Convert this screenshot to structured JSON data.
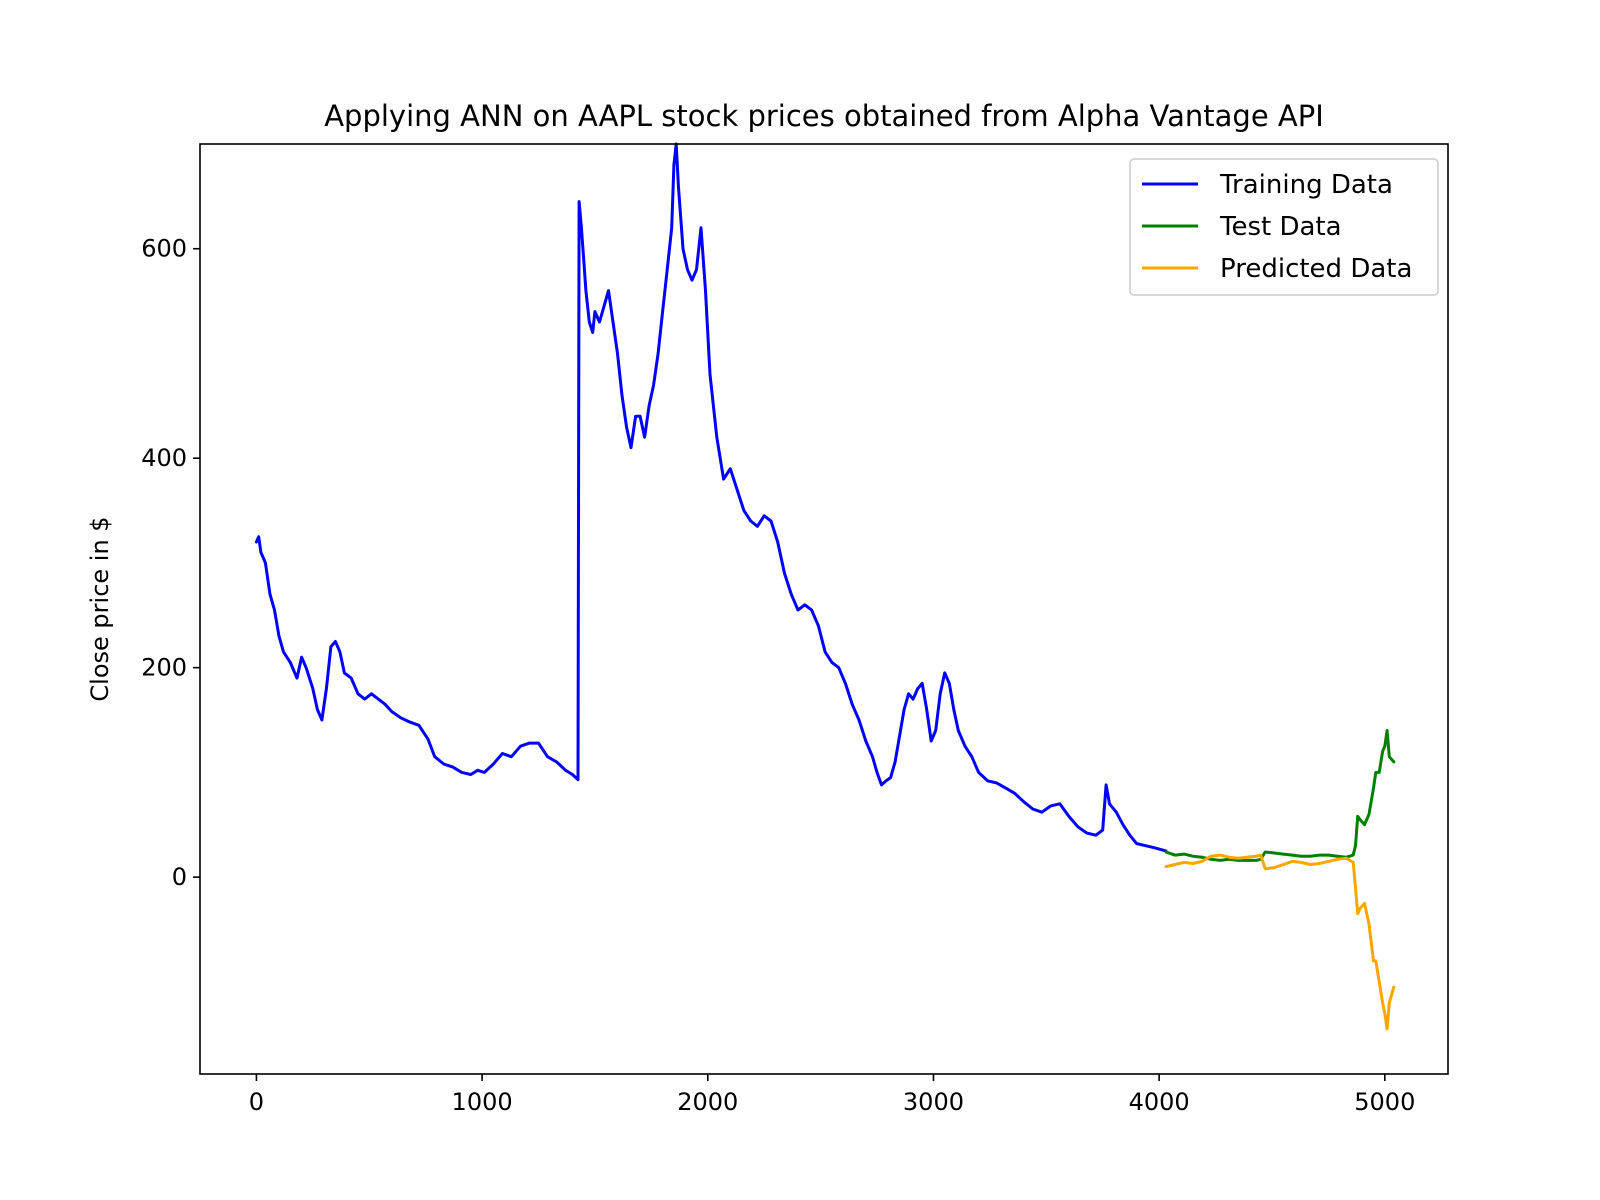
{
  "chart_data": {
    "type": "line",
    "title": "Applying ANN on AAPL stock prices obtained from Alpha Vantage API",
    "xlabel": "",
    "ylabel": "Close price in $",
    "xlim": [
      -250,
      5280
    ],
    "ylim": [
      -188,
      700
    ],
    "x_ticks": [
      0,
      1000,
      2000,
      3000,
      4000,
      5000
    ],
    "y_ticks": [
      0,
      200,
      400,
      600
    ],
    "grid": false,
    "legend_position": "top-right",
    "series": [
      {
        "name": "Training Data",
        "color": "#0000ff",
        "points": [
          [
            0,
            320
          ],
          [
            10,
            325
          ],
          [
            20,
            310
          ],
          [
            40,
            300
          ],
          [
            60,
            270
          ],
          [
            80,
            255
          ],
          [
            100,
            230
          ],
          [
            120,
            215
          ],
          [
            150,
            205
          ],
          [
            180,
            190
          ],
          [
            200,
            210
          ],
          [
            220,
            200
          ],
          [
            250,
            180
          ],
          [
            270,
            160
          ],
          [
            290,
            150
          ],
          [
            310,
            180
          ],
          [
            330,
            220
          ],
          [
            350,
            225
          ],
          [
            370,
            215
          ],
          [
            390,
            195
          ],
          [
            420,
            190
          ],
          [
            450,
            175
          ],
          [
            480,
            170
          ],
          [
            510,
            175
          ],
          [
            540,
            170
          ],
          [
            570,
            165
          ],
          [
            600,
            158
          ],
          [
            640,
            152
          ],
          [
            680,
            148
          ],
          [
            720,
            145
          ],
          [
            760,
            132
          ],
          [
            790,
            115
          ],
          [
            830,
            108
          ],
          [
            870,
            105
          ],
          [
            910,
            100
          ],
          [
            950,
            98
          ],
          [
            980,
            102
          ],
          [
            1010,
            100
          ],
          [
            1050,
            108
          ],
          [
            1090,
            118
          ],
          [
            1130,
            115
          ],
          [
            1170,
            125
          ],
          [
            1210,
            128
          ],
          [
            1250,
            128
          ],
          [
            1290,
            115
          ],
          [
            1330,
            110
          ],
          [
            1370,
            102
          ],
          [
            1400,
            98
          ],
          [
            1425,
            93
          ],
          [
            1430,
            645
          ],
          [
            1440,
            620
          ],
          [
            1450,
            590
          ],
          [
            1460,
            560
          ],
          [
            1475,
            530
          ],
          [
            1490,
            520
          ],
          [
            1500,
            540
          ],
          [
            1520,
            530
          ],
          [
            1540,
            545
          ],
          [
            1560,
            560
          ],
          [
            1580,
            530
          ],
          [
            1600,
            500
          ],
          [
            1620,
            460
          ],
          [
            1640,
            430
          ],
          [
            1660,
            410
          ],
          [
            1680,
            440
          ],
          [
            1700,
            440
          ],
          [
            1720,
            420
          ],
          [
            1740,
            450
          ],
          [
            1760,
            470
          ],
          [
            1780,
            500
          ],
          [
            1800,
            540
          ],
          [
            1820,
            580
          ],
          [
            1840,
            620
          ],
          [
            1850,
            680
          ],
          [
            1860,
            700
          ],
          [
            1870,
            660
          ],
          [
            1890,
            600
          ],
          [
            1910,
            580
          ],
          [
            1930,
            570
          ],
          [
            1950,
            580
          ],
          [
            1970,
            620
          ],
          [
            1990,
            560
          ],
          [
            2010,
            480
          ],
          [
            2040,
            420
          ],
          [
            2070,
            380
          ],
          [
            2100,
            390
          ],
          [
            2130,
            370
          ],
          [
            2160,
            350
          ],
          [
            2190,
            340
          ],
          [
            2220,
            335
          ],
          [
            2250,
            345
          ],
          [
            2280,
            340
          ],
          [
            2310,
            320
          ],
          [
            2340,
            290
          ],
          [
            2370,
            270
          ],
          [
            2400,
            255
          ],
          [
            2430,
            260
          ],
          [
            2460,
            255
          ],
          [
            2490,
            240
          ],
          [
            2520,
            215
          ],
          [
            2550,
            205
          ],
          [
            2580,
            200
          ],
          [
            2610,
            185
          ],
          [
            2640,
            165
          ],
          [
            2670,
            150
          ],
          [
            2700,
            130
          ],
          [
            2730,
            115
          ],
          [
            2750,
            100
          ],
          [
            2770,
            88
          ],
          [
            2790,
            92
          ],
          [
            2810,
            95
          ],
          [
            2830,
            110
          ],
          [
            2850,
            135
          ],
          [
            2870,
            160
          ],
          [
            2890,
            175
          ],
          [
            2910,
            170
          ],
          [
            2930,
            180
          ],
          [
            2950,
            185
          ],
          [
            2970,
            160
          ],
          [
            2990,
            130
          ],
          [
            3010,
            140
          ],
          [
            3030,
            175
          ],
          [
            3050,
            195
          ],
          [
            3070,
            185
          ],
          [
            3090,
            160
          ],
          [
            3110,
            140
          ],
          [
            3140,
            125
          ],
          [
            3170,
            115
          ],
          [
            3200,
            100
          ],
          [
            3240,
            92
          ],
          [
            3280,
            90
          ],
          [
            3320,
            85
          ],
          [
            3360,
            80
          ],
          [
            3400,
            72
          ],
          [
            3440,
            65
          ],
          [
            3480,
            62
          ],
          [
            3520,
            68
          ],
          [
            3560,
            70
          ],
          [
            3600,
            58
          ],
          [
            3640,
            48
          ],
          [
            3680,
            42
          ],
          [
            3720,
            40
          ],
          [
            3750,
            45
          ],
          [
            3765,
            88
          ],
          [
            3780,
            70
          ],
          [
            3810,
            62
          ],
          [
            3840,
            50
          ],
          [
            3870,
            40
          ],
          [
            3900,
            32
          ],
          [
            3940,
            30
          ],
          [
            3980,
            28
          ],
          [
            4030,
            25
          ]
        ]
      },
      {
        "name": "Test Data",
        "color": "#008000",
        "points": [
          [
            4030,
            24
          ],
          [
            4070,
            21
          ],
          [
            4110,
            22
          ],
          [
            4150,
            20
          ],
          [
            4190,
            19
          ],
          [
            4230,
            17
          ],
          [
            4270,
            16
          ],
          [
            4310,
            17
          ],
          [
            4350,
            16
          ],
          [
            4390,
            16
          ],
          [
            4430,
            16
          ],
          [
            4450,
            17
          ],
          [
            4470,
            24
          ],
          [
            4510,
            23
          ],
          [
            4550,
            22
          ],
          [
            4590,
            21
          ],
          [
            4630,
            20
          ],
          [
            4670,
            20
          ],
          [
            4710,
            21
          ],
          [
            4750,
            21
          ],
          [
            4790,
            20
          ],
          [
            4830,
            19
          ],
          [
            4860,
            21
          ],
          [
            4870,
            30
          ],
          [
            4880,
            58
          ],
          [
            4890,
            55
          ],
          [
            4910,
            50
          ],
          [
            4930,
            60
          ],
          [
            4950,
            85
          ],
          [
            4960,
            100
          ],
          [
            4975,
            100
          ],
          [
            4990,
            120
          ],
          [
            5000,
            125
          ],
          [
            5010,
            140
          ],
          [
            5020,
            115
          ],
          [
            5040,
            110
          ]
        ]
      },
      {
        "name": "Predicted Data",
        "color": "#ffa500",
        "points": [
          [
            4030,
            10
          ],
          [
            4070,
            12
          ],
          [
            4110,
            14
          ],
          [
            4150,
            13
          ],
          [
            4190,
            15
          ],
          [
            4230,
            20
          ],
          [
            4270,
            21
          ],
          [
            4310,
            19
          ],
          [
            4350,
            18
          ],
          [
            4390,
            19
          ],
          [
            4430,
            20
          ],
          [
            4450,
            21
          ],
          [
            4470,
            8
          ],
          [
            4510,
            9
          ],
          [
            4550,
            12
          ],
          [
            4590,
            15
          ],
          [
            4630,
            14
          ],
          [
            4670,
            12
          ],
          [
            4710,
            13
          ],
          [
            4750,
            15
          ],
          [
            4790,
            17
          ],
          [
            4830,
            18
          ],
          [
            4860,
            14
          ],
          [
            4870,
            -10
          ],
          [
            4880,
            -35
          ],
          [
            4890,
            -30
          ],
          [
            4910,
            -25
          ],
          [
            4930,
            -45
          ],
          [
            4950,
            -80
          ],
          [
            4960,
            -80
          ],
          [
            4975,
            -100
          ],
          [
            4990,
            -120
          ],
          [
            5000,
            -130
          ],
          [
            5010,
            -145
          ],
          [
            5020,
            -120
          ],
          [
            5040,
            -105
          ]
        ]
      }
    ]
  }
}
